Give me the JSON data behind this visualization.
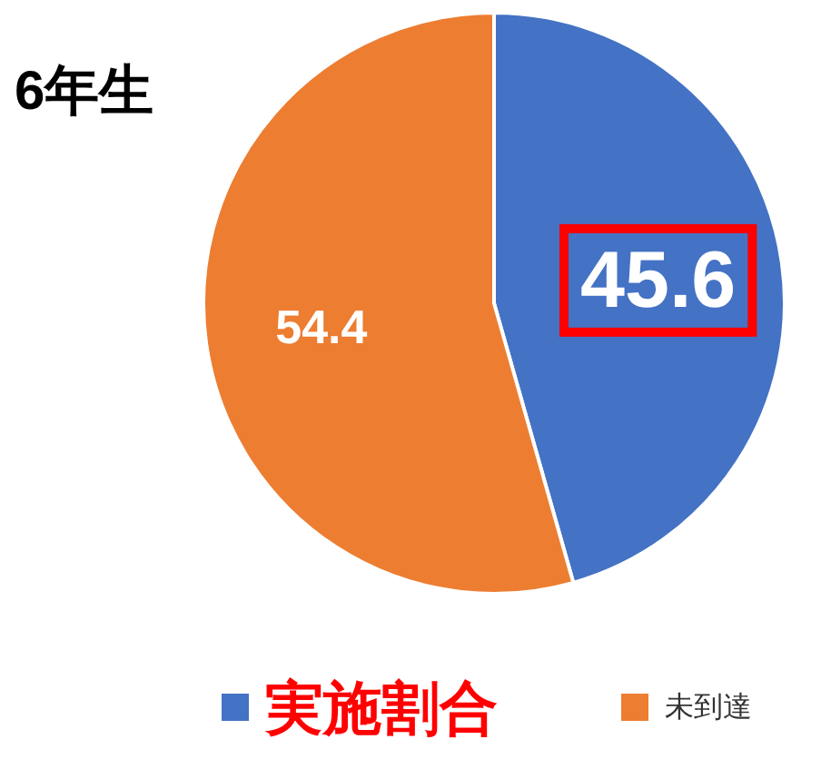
{
  "chart_data": {
    "type": "pie",
    "title": "6年生",
    "categories": [
      "実施割合",
      "未到達"
    ],
    "values": [
      45.6,
      54.4
    ],
    "colors": [
      "#4472c4",
      "#ed7d31"
    ],
    "data_labels": true,
    "legend": "bottom"
  }
}
